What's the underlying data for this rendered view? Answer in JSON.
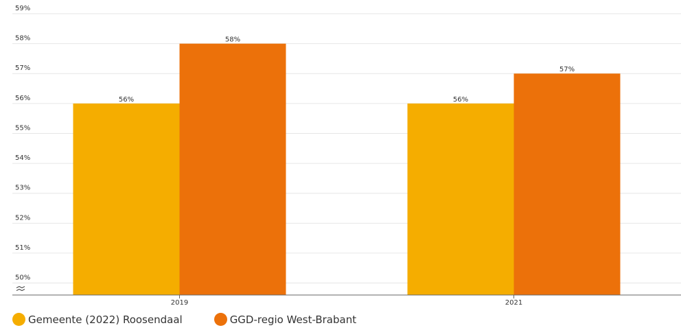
{
  "chart_data": {
    "type": "bar",
    "categories": [
      "2019",
      "2021"
    ],
    "series": [
      {
        "name": "Gemeente (2022) Roosendaal",
        "color": "#F5AD00",
        "values": [
          56,
          56
        ],
        "labels": [
          "56%",
          "56%"
        ]
      },
      {
        "name": "GGD-regio West-Brabant",
        "color": "#EC710A",
        "values": [
          58,
          57
        ],
        "labels": [
          "58%",
          "57%"
        ]
      }
    ],
    "ylim": [
      49.6,
      59
    ],
    "yticks": [
      {
        "value": 50,
        "label": "50%"
      },
      {
        "value": 51,
        "label": "51%"
      },
      {
        "value": 52,
        "label": "52%"
      },
      {
        "value": 53,
        "label": "53%"
      },
      {
        "value": 54,
        "label": "54%"
      },
      {
        "value": 55,
        "label": "55%"
      },
      {
        "value": 56,
        "label": "56%"
      },
      {
        "value": 57,
        "label": "57%"
      },
      {
        "value": 58,
        "label": "58%"
      },
      {
        "value": 59,
        "label": "59%"
      }
    ],
    "axis_break": true,
    "grid": true,
    "legend_position": "bottom-left",
    "colors": {
      "grid": "#e6e6e6",
      "axis": "#666666",
      "text": "#333333"
    }
  }
}
